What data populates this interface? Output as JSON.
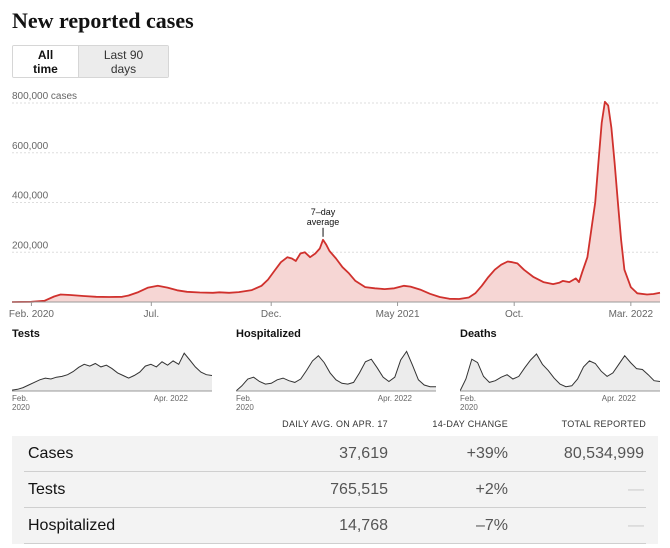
{
  "title": "New reported cases",
  "toggle": {
    "all_time": "All time",
    "last_90": "Last 90 days"
  },
  "chart_data": {
    "type": "area",
    "title": "New reported cases",
    "series_name": "7-day average",
    "ylabel": "cases",
    "ylim": [
      0,
      800000
    ],
    "y_ticks": [
      {
        "value": 200000,
        "label": "200,000"
      },
      {
        "value": 400000,
        "label": "400,000"
      },
      {
        "value": 600000,
        "label": "600,000"
      },
      {
        "value": 800000,
        "label": "800,000 cases"
      }
    ],
    "x_ticks": [
      "Feb. 2020",
      "Jul.",
      "Dec.",
      "May 2021",
      "Oct.",
      "Mar. 2022"
    ],
    "annotation": {
      "line1": "7–day",
      "line2": "average"
    },
    "colors": {
      "line": "#d0312d",
      "fill": "#f6d6d4",
      "grid": "#dddddd",
      "axis": "#999999"
    },
    "points": [
      [
        0,
        0
      ],
      [
        0.03,
        1000
      ],
      [
        0.05,
        5000
      ],
      [
        0.065,
        22000
      ],
      [
        0.075,
        30000
      ],
      [
        0.09,
        28000
      ],
      [
        0.11,
        24000
      ],
      [
        0.13,
        21000
      ],
      [
        0.15,
        20000
      ],
      [
        0.17,
        21000
      ],
      [
        0.18,
        26000
      ],
      [
        0.195,
        40000
      ],
      [
        0.21,
        58000
      ],
      [
        0.225,
        65000
      ],
      [
        0.24,
        58000
      ],
      [
        0.255,
        47000
      ],
      [
        0.27,
        41000
      ],
      [
        0.29,
        38000
      ],
      [
        0.31,
        37000
      ],
      [
        0.32,
        39000
      ],
      [
        0.335,
        37000
      ],
      [
        0.35,
        40000
      ],
      [
        0.37,
        48000
      ],
      [
        0.385,
        65000
      ],
      [
        0.395,
        90000
      ],
      [
        0.405,
        125000
      ],
      [
        0.415,
        160000
      ],
      [
        0.425,
        180000
      ],
      [
        0.432,
        175000
      ],
      [
        0.438,
        165000
      ],
      [
        0.445,
        195000
      ],
      [
        0.452,
        200000
      ],
      [
        0.46,
        180000
      ],
      [
        0.468,
        195000
      ],
      [
        0.475,
        215000
      ],
      [
        0.48,
        250000
      ],
      [
        0.485,
        230000
      ],
      [
        0.49,
        205000
      ],
      [
        0.5,
        175000
      ],
      [
        0.51,
        140000
      ],
      [
        0.52,
        115000
      ],
      [
        0.53,
        85000
      ],
      [
        0.545,
        60000
      ],
      [
        0.56,
        55000
      ],
      [
        0.575,
        52000
      ],
      [
        0.59,
        55000
      ],
      [
        0.605,
        65000
      ],
      [
        0.615,
        62000
      ],
      [
        0.63,
        50000
      ],
      [
        0.645,
        33000
      ],
      [
        0.66,
        20000
      ],
      [
        0.675,
        13000
      ],
      [
        0.69,
        12000
      ],
      [
        0.705,
        18000
      ],
      [
        0.715,
        35000
      ],
      [
        0.725,
        65000
      ],
      [
        0.735,
        100000
      ],
      [
        0.745,
        130000
      ],
      [
        0.755,
        150000
      ],
      [
        0.765,
        163000
      ],
      [
        0.772,
        160000
      ],
      [
        0.78,
        155000
      ],
      [
        0.79,
        130000
      ],
      [
        0.805,
        100000
      ],
      [
        0.82,
        80000
      ],
      [
        0.835,
        72000
      ],
      [
        0.845,
        78000
      ],
      [
        0.85,
        85000
      ],
      [
        0.86,
        80000
      ],
      [
        0.87,
        95000
      ],
      [
        0.875,
        80000
      ],
      [
        0.88,
        120000
      ],
      [
        0.888,
        180000
      ],
      [
        0.895,
        310000
      ],
      [
        0.9,
        400000
      ],
      [
        0.905,
        560000
      ],
      [
        0.91,
        720000
      ],
      [
        0.915,
        805000
      ],
      [
        0.92,
        790000
      ],
      [
        0.925,
        700000
      ],
      [
        0.93,
        560000
      ],
      [
        0.935,
        400000
      ],
      [
        0.94,
        250000
      ],
      [
        0.945,
        130000
      ],
      [
        0.955,
        60000
      ],
      [
        0.965,
        35000
      ],
      [
        0.98,
        30000
      ],
      [
        0.99,
        32000
      ],
      [
        1.0,
        37000
      ]
    ]
  },
  "mini_charts": [
    {
      "title": "Tests",
      "start": "Feb. 2020",
      "end": "Apr. 2022",
      "values": [
        2,
        4,
        8,
        14,
        20,
        26,
        30,
        28,
        32,
        34,
        38,
        45,
        55,
        62,
        58,
        64,
        56,
        60,
        52,
        42,
        36,
        30,
        36,
        44,
        58,
        62,
        56,
        68,
        60,
        70,
        62,
        88,
        72,
        56,
        44,
        38,
        36
      ]
    },
    {
      "title": "Hospitalized",
      "start": "Feb. 2020",
      "end": "Apr. 2022",
      "values": [
        0,
        12,
        28,
        32,
        22,
        16,
        18,
        26,
        30,
        24,
        20,
        28,
        48,
        70,
        82,
        66,
        42,
        26,
        18,
        16,
        20,
        42,
        68,
        74,
        54,
        32,
        22,
        32,
        72,
        92,
        60,
        26,
        14,
        10,
        10
      ]
    },
    {
      "title": "Deaths",
      "start": "Feb. 2020",
      "end": "Apr. 2022",
      "values": [
        0,
        28,
        74,
        66,
        34,
        20,
        24,
        32,
        38,
        28,
        34,
        54,
        72,
        86,
        62,
        48,
        30,
        16,
        10,
        12,
        28,
        56,
        70,
        64,
        46,
        34,
        42,
        62,
        82,
        66,
        52,
        50,
        38,
        24,
        22
      ]
    }
  ],
  "table": {
    "headers": {
      "avg": "DAILY AVG. ON APR. 17",
      "change": "14-DAY CHANGE",
      "total": "TOTAL REPORTED"
    },
    "rows": [
      {
        "name": "Cases",
        "avg": "37,619",
        "change": "+39%",
        "total": "80,534,999"
      },
      {
        "name": "Tests",
        "avg": "765,515",
        "change": "+2%",
        "total": "—"
      },
      {
        "name": "Hospitalized",
        "avg": "14,768",
        "change": "–7%",
        "total": "—"
      }
    ]
  }
}
